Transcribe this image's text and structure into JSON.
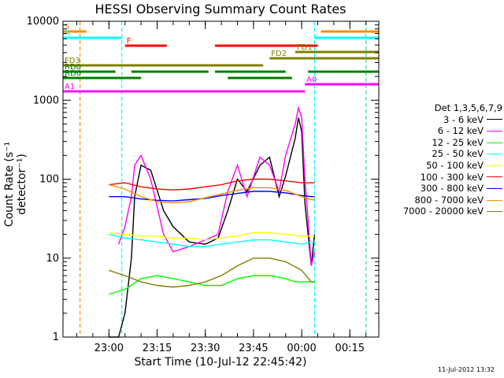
{
  "chart_data": {
    "type": "line",
    "title": "HESSI Observing Summary Count Rates",
    "xlabel": "Start Time (10-Jul-12 22:45:42)",
    "ylabel": "Count Rate (s⁻¹ detector⁻¹)",
    "xlim": [
      "22:45:42",
      "00:24"
    ],
    "ylim": [
      1,
      10000
    ],
    "yscale": "log",
    "xticks": [
      "23:00",
      "23:15",
      "23:30",
      "23:45",
      "00:00",
      "00:15"
    ],
    "yticks": [
      "1",
      "10",
      "100",
      "1000",
      "10000"
    ],
    "legend_title": "Det 1,3,5,6,7,9",
    "legend_position": "right",
    "series": [
      {
        "name": "3 - 6 keV",
        "color": "#000000",
        "x": [
          "23:00",
          "23:03",
          "23:05",
          "23:07",
          "23:08",
          "23:10",
          "23:13",
          "23:17",
          "23:20",
          "23:25",
          "23:30",
          "23:34",
          "23:37",
          "23:40",
          "23:43",
          "23:47",
          "23:50",
          "23:53",
          "23:55",
          "23:58",
          "23:59",
          "00:00",
          "00:01",
          "00:03",
          "00:04"
        ],
        "y": [
          1,
          1,
          2,
          10,
          60,
          150,
          130,
          40,
          25,
          16,
          15,
          18,
          40,
          100,
          70,
          150,
          190,
          60,
          110,
          330,
          600,
          400,
          50,
          8,
          20
        ]
      },
      {
        "name": "6 - 12 keV",
        "color": "#ff00ff",
        "x": [
          "23:03",
          "23:05",
          "23:07",
          "23:08",
          "23:10",
          "23:13",
          "23:17",
          "23:20",
          "23:25",
          "23:30",
          "23:34",
          "23:37",
          "23:40",
          "23:43",
          "23:47",
          "23:50",
          "23:53",
          "23:55",
          "23:58",
          "23:59",
          "00:00",
          "00:01",
          "00:02",
          "00:03",
          "00:04"
        ],
        "y": [
          15,
          25,
          60,
          150,
          200,
          100,
          20,
          12,
          14,
          17,
          20,
          70,
          150,
          60,
          190,
          150,
          70,
          200,
          500,
          800,
          600,
          100,
          30,
          8,
          12
        ]
      },
      {
        "name": "12 - 25 keV",
        "color": "#00ff00",
        "x": [
          "23:00",
          "23:05",
          "23:10",
          "23:15",
          "23:20",
          "23:25",
          "23:30",
          "23:35",
          "23:40",
          "23:45",
          "23:50",
          "23:55",
          "23:58",
          "00:00",
          "00:03",
          "00:04"
        ],
        "y": [
          3.5,
          4,
          5.5,
          6,
          5.5,
          5,
          4.5,
          4.5,
          5.5,
          6,
          6,
          5.5,
          5,
          5,
          5,
          5
        ]
      },
      {
        "name": "25 - 50 keV",
        "color": "#00ffff",
        "x": [
          "23:00",
          "23:05",
          "23:10",
          "23:15",
          "23:20",
          "23:25",
          "23:30",
          "23:35",
          "23:40",
          "23:45",
          "23:50",
          "23:55",
          "00:00",
          "00:03",
          "00:04"
        ],
        "y": [
          20,
          18,
          17,
          16,
          15,
          14,
          14,
          15,
          16,
          17,
          17,
          16,
          15,
          16,
          16
        ]
      },
      {
        "name": "50 - 100 keV",
        "color": "#ffff00",
        "x": [
          "23:00",
          "23:05",
          "23:10",
          "23:15",
          "23:20",
          "23:25",
          "23:30",
          "23:35",
          "23:40",
          "23:45",
          "23:50",
          "23:55",
          "00:00",
          "00:03",
          "00:04"
        ],
        "y": [
          21,
          20,
          19,
          19,
          18,
          18,
          17,
          18,
          19,
          21,
          21,
          20,
          19,
          19,
          19
        ]
      },
      {
        "name": "100 - 300 keV",
        "color": "#ff0000",
        "x": [
          "23:00",
          "23:05",
          "23:10",
          "23:15",
          "23:20",
          "23:25",
          "23:30",
          "23:35",
          "23:40",
          "23:45",
          "23:50",
          "23:55",
          "00:00",
          "00:03",
          "00:04"
        ],
        "y": [
          85,
          90,
          80,
          75,
          73,
          75,
          80,
          85,
          95,
          100,
          100,
          95,
          90,
          90,
          90
        ]
      },
      {
        "name": "300 - 800 keV",
        "color": "#0000ff",
        "x": [
          "23:00",
          "23:05",
          "23:10",
          "23:15",
          "23:20",
          "23:25",
          "23:30",
          "23:35",
          "23:40",
          "23:45",
          "23:50",
          "23:55",
          "00:00",
          "00:03",
          "00:04"
        ],
        "y": [
          60,
          60,
          56,
          54,
          53,
          55,
          57,
          62,
          66,
          70,
          70,
          67,
          62,
          60,
          60
        ]
      },
      {
        "name": "800 - 7000 keV",
        "color": "#ff8c00",
        "x": [
          "23:00",
          "23:05",
          "23:10",
          "23:15",
          "23:20",
          "23:25",
          "23:30",
          "23:35",
          "23:40",
          "23:45",
          "23:50",
          "23:55",
          "00:00",
          "00:03",
          "00:04"
        ],
        "y": [
          85,
          75,
          60,
          52,
          50,
          52,
          58,
          65,
          72,
          78,
          78,
          72,
          60,
          55,
          55
        ]
      },
      {
        "name": "7000 - 20000 keV",
        "color": "#808000",
        "x": [
          "23:00",
          "23:05",
          "23:10",
          "23:15",
          "23:20",
          "23:25",
          "23:30",
          "23:35",
          "23:40",
          "23:45",
          "23:50",
          "23:55",
          "00:00",
          "00:03",
          "00:04"
        ],
        "y": [
          7,
          6,
          5,
          4.5,
          4.3,
          4.5,
          5,
          6,
          8,
          10,
          10,
          9,
          7,
          5,
          5
        ]
      }
    ],
    "flags": [
      {
        "label": "S",
        "color": "#ff8c00",
        "segments": [
          [
            "22:45:42",
            "22:53"
          ],
          [
            "00:06",
            "00:24"
          ]
        ]
      },
      {
        "label": "N",
        "color": "#00ffff",
        "segments": [
          [
            "22:45:42",
            "23:04"
          ],
          [
            "00:04",
            "00:24"
          ]
        ]
      },
      {
        "label": "F",
        "color": "#ff0000",
        "segments": [
          [
            "23:05",
            "23:18"
          ],
          [
            "23:33",
            "00:05"
          ]
        ]
      },
      {
        "label": "FD1",
        "color": "#808000",
        "segments": [
          [
            "23:58",
            "00:24"
          ]
        ]
      },
      {
        "label": "FD2",
        "color": "#808000",
        "segments": [
          [
            "23:50",
            "00:24"
          ]
        ]
      },
      {
        "label": "FD3",
        "color": "#808000",
        "segments": [
          [
            "22:45:42",
            "23:48"
          ]
        ]
      },
      {
        "label": "RD0",
        "color": "#008000",
        "segments": [
          [
            "22:45:42",
            "23:02"
          ],
          [
            "23:07",
            "23:31"
          ],
          [
            "23:33",
            "23:55"
          ],
          [
            "00:02",
            "00:24"
          ]
        ]
      },
      {
        "label": "RD6",
        "color": "#008000",
        "segments": [
          [
            "22:45:42",
            "23:10"
          ],
          [
            "23:37",
            "23:57"
          ]
        ]
      },
      {
        "label": "A0",
        "color": "#ff00ff",
        "segments": [
          [
            "00:01",
            "00:24"
          ]
        ]
      },
      {
        "label": "A1",
        "color": "#ff00ff",
        "segments": [
          [
            "22:45:42",
            "00:01"
          ]
        ]
      }
    ],
    "markers": [
      {
        "color": "#ff8c00",
        "x": "22:51"
      },
      {
        "color": "#00ffff",
        "x": "23:04"
      },
      {
        "color": "#00ffff",
        "x": "00:04"
      },
      {
        "color": "#ff8c00",
        "x": "00:20"
      },
      {
        "color": "#00ffff",
        "x": "00:20"
      }
    ]
  },
  "footer": {
    "timestamp": "11-Jul-2012 13:32"
  }
}
